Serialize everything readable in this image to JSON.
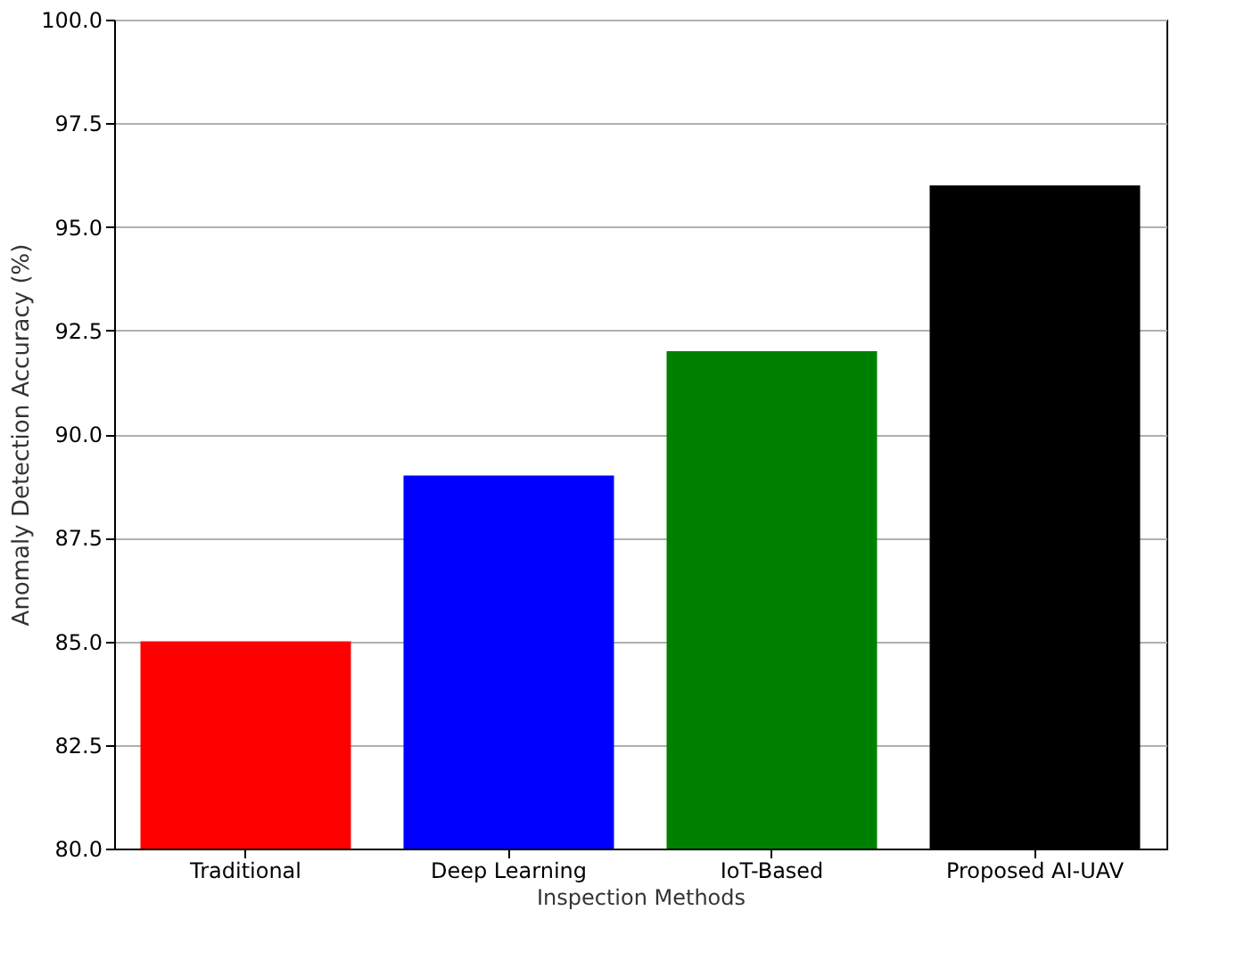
{
  "chart_data": {
    "type": "bar",
    "xlabel": "Inspection Methods",
    "ylabel": "Anomaly Detection Accuracy (%)",
    "categories": [
      "Traditional",
      "Deep Learning",
      "IoT-Based",
      "Proposed AI-UAV"
    ],
    "values": [
      85,
      89,
      92,
      96
    ],
    "colors": [
      "#ff0000",
      "#0000ff",
      "#008000",
      "#000000"
    ],
    "ylim": [
      80,
      100
    ],
    "yticks": [
      {
        "value": 80,
        "label": "80.0"
      },
      {
        "value": 82.5,
        "label": "82.5"
      },
      {
        "value": 85,
        "label": "85.0"
      },
      {
        "value": 87.5,
        "label": "87.5"
      },
      {
        "value": 90,
        "label": "90.0"
      },
      {
        "value": 92.5,
        "label": "92.5"
      },
      {
        "value": 95,
        "label": "95.0"
      },
      {
        "value": 97.5,
        "label": "97.5"
      },
      {
        "value": 100,
        "label": "100.0"
      }
    ],
    "grid": "y"
  }
}
